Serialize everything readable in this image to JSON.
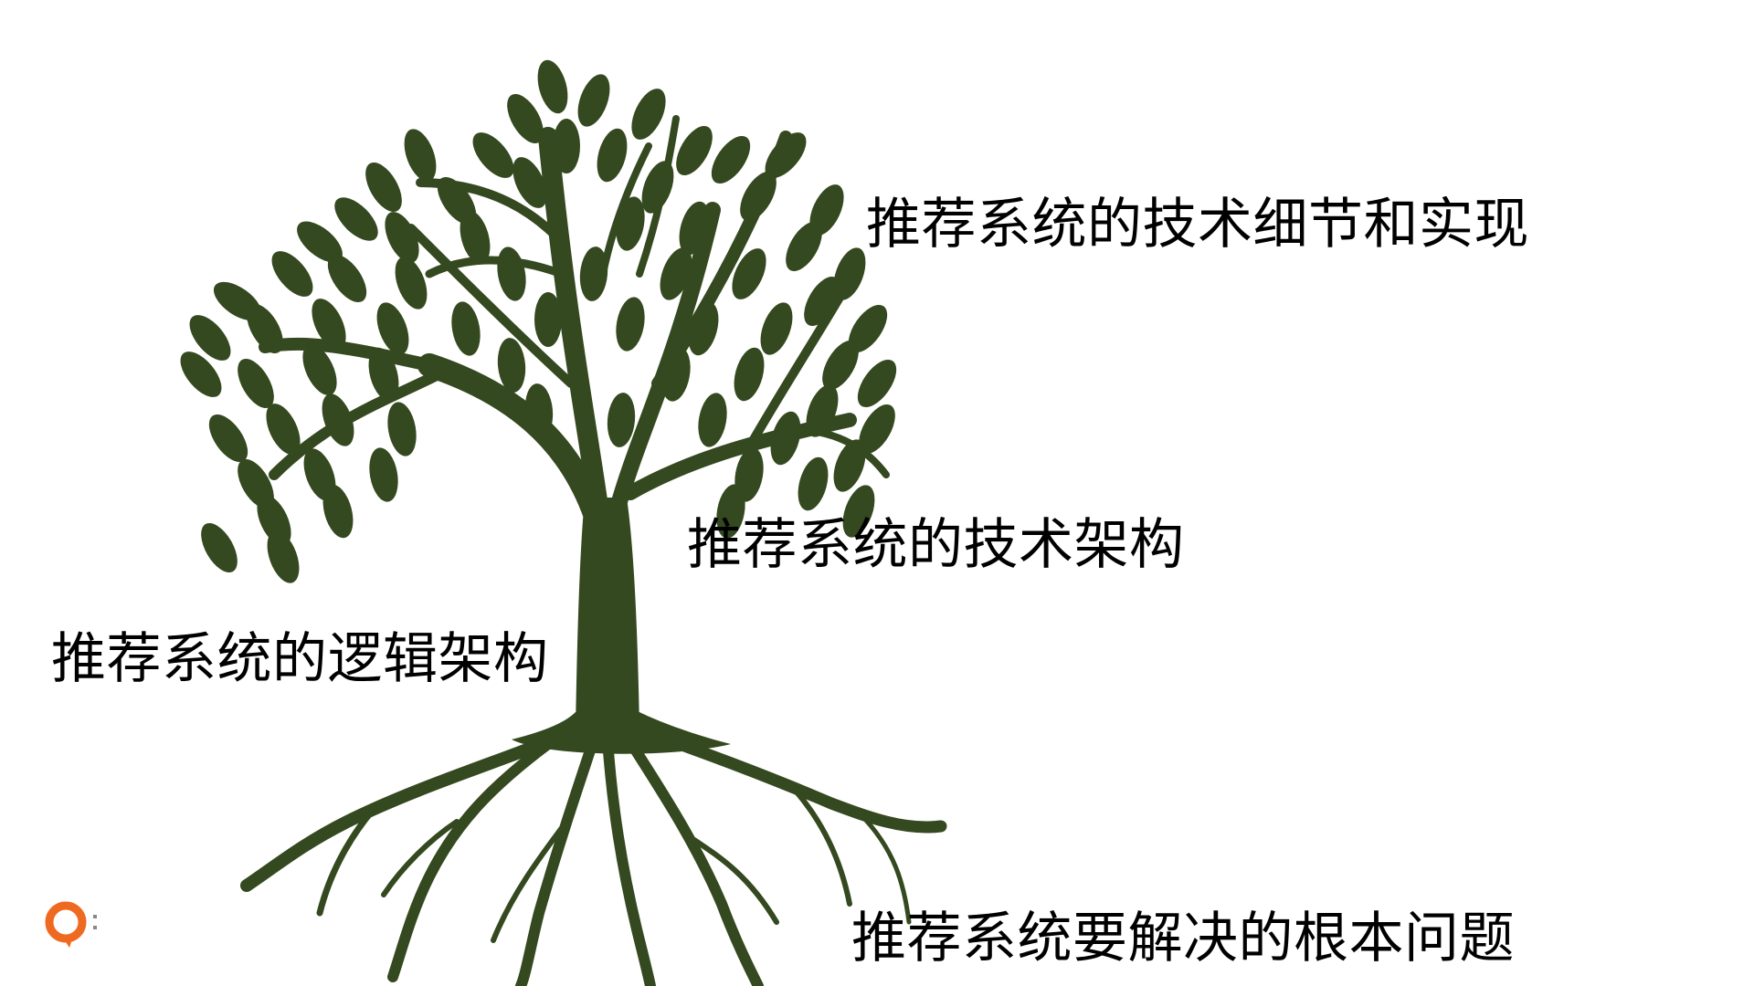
{
  "labels": {
    "details": "推荐系统的技术细节和实现",
    "tech_arch": "推荐系统的技术架构",
    "logic_arch": "推荐系统的逻辑架构",
    "root_problem": "推荐系统要解决的根本问题"
  },
  "colors": {
    "tree": "#34491f",
    "text": "#000000",
    "logo_orange": "#ee6a21",
    "background": "#ffffff"
  },
  "icons": {
    "tree": "tree-illustration",
    "logo": "brand-logo-icon"
  }
}
